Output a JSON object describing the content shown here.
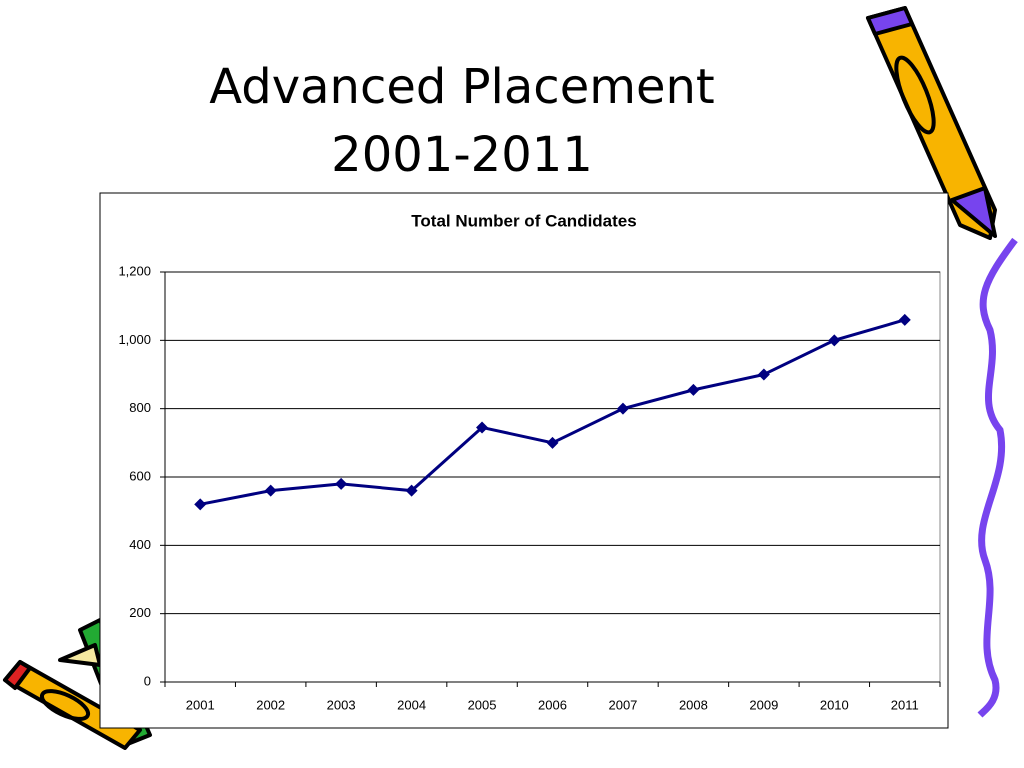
{
  "slide": {
    "title_lines": [
      "Advanced Placement",
      "2001-2011"
    ]
  },
  "chart_data": {
    "type": "line",
    "title": "Total Number of Candidates",
    "categories": [
      "2001",
      "2002",
      "2003",
      "2004",
      "2005",
      "2006",
      "2007",
      "2008",
      "2009",
      "2010",
      "2011"
    ],
    "values": [
      520,
      560,
      580,
      560,
      745,
      700,
      800,
      855,
      900,
      1000,
      1060
    ],
    "color": "#000080",
    "ylim": [
      0,
      1200
    ],
    "yticks": [
      0,
      200,
      400,
      600,
      800,
      {
        "value": 1000,
        "label": "1,000"
      },
      {
        "value": 1200,
        "label": "1,200"
      }
    ],
    "grid": true
  }
}
